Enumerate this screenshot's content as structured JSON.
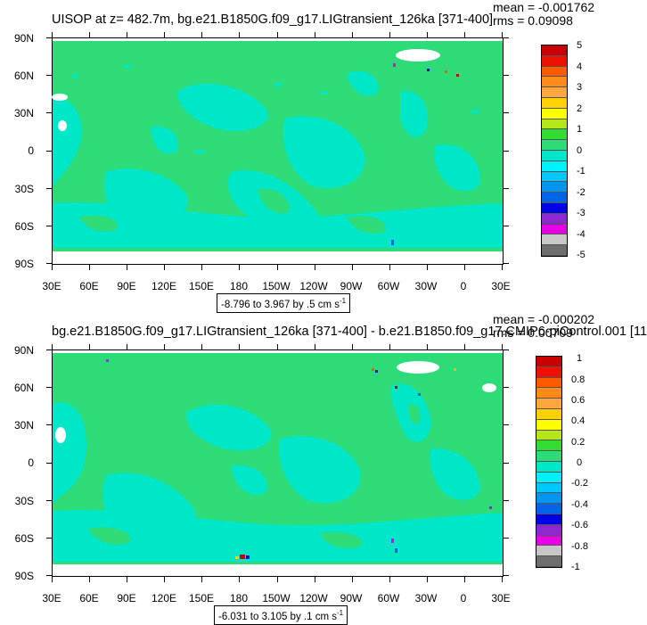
{
  "panels": [
    {
      "title": "UISOP at z= 482.7m, bg.e21.B1850G.f09_g17.LIGtransient_126ka [371-400]",
      "mean": "mean = -0.001762",
      "rms": "rms = 0.09098",
      "range_text": "-8.796 to 3.967 by .5 cm s",
      "range_unit_exp": "-1",
      "legend_labels": [
        "5",
        "4",
        "3",
        "2",
        "1",
        "0",
        "-1",
        "-2",
        "-3",
        "-4",
        "-5"
      ]
    },
    {
      "title": "bg.e21.B1850G.f09_g17.LIGtransient_126ka [371-400] - b.e21.B1850.f09_g17.CMIP6-piControl.001 [11",
      "mean": "mean = -0.000202",
      "rms": "rms = 0.00709",
      "range_text": "-6.031 to 3.105 by .1 cm s",
      "range_unit_exp": "-1",
      "legend_labels": [
        "1",
        "0.8",
        "0.6",
        "0.4",
        "0.2",
        "0",
        "-0.2",
        "-0.4",
        "-0.6",
        "-0.8",
        "-1"
      ]
    }
  ],
  "lat_labels": [
    "90N",
    "60N",
    "30N",
    "0",
    "30S",
    "60S",
    "90S"
  ],
  "lon_labels": [
    "30E",
    "60E",
    "90E",
    "120E",
    "150E",
    "180",
    "150W",
    "120W",
    "90W",
    "60W",
    "30W",
    "0",
    "30E"
  ],
  "legend_colors": [
    "#c80000",
    "#ee1000",
    "#ff5a00",
    "#ff8a1a",
    "#ffa640",
    "#ffd100",
    "#ffff00",
    "#b4e619",
    "#32dc32",
    "#2ddc78",
    "#00e6c8",
    "#00f0ff",
    "#00c8ff",
    "#0096f0",
    "#0064e6",
    "#0000e6",
    "#8c28d2",
    "#e600e6",
    "#c8c8c8",
    "#6e6e6e"
  ],
  "map_colors": {
    "ocean_base": "#2ddc78",
    "ocean_cyan": "#00e6c8",
    "land": "#ffffff"
  }
}
